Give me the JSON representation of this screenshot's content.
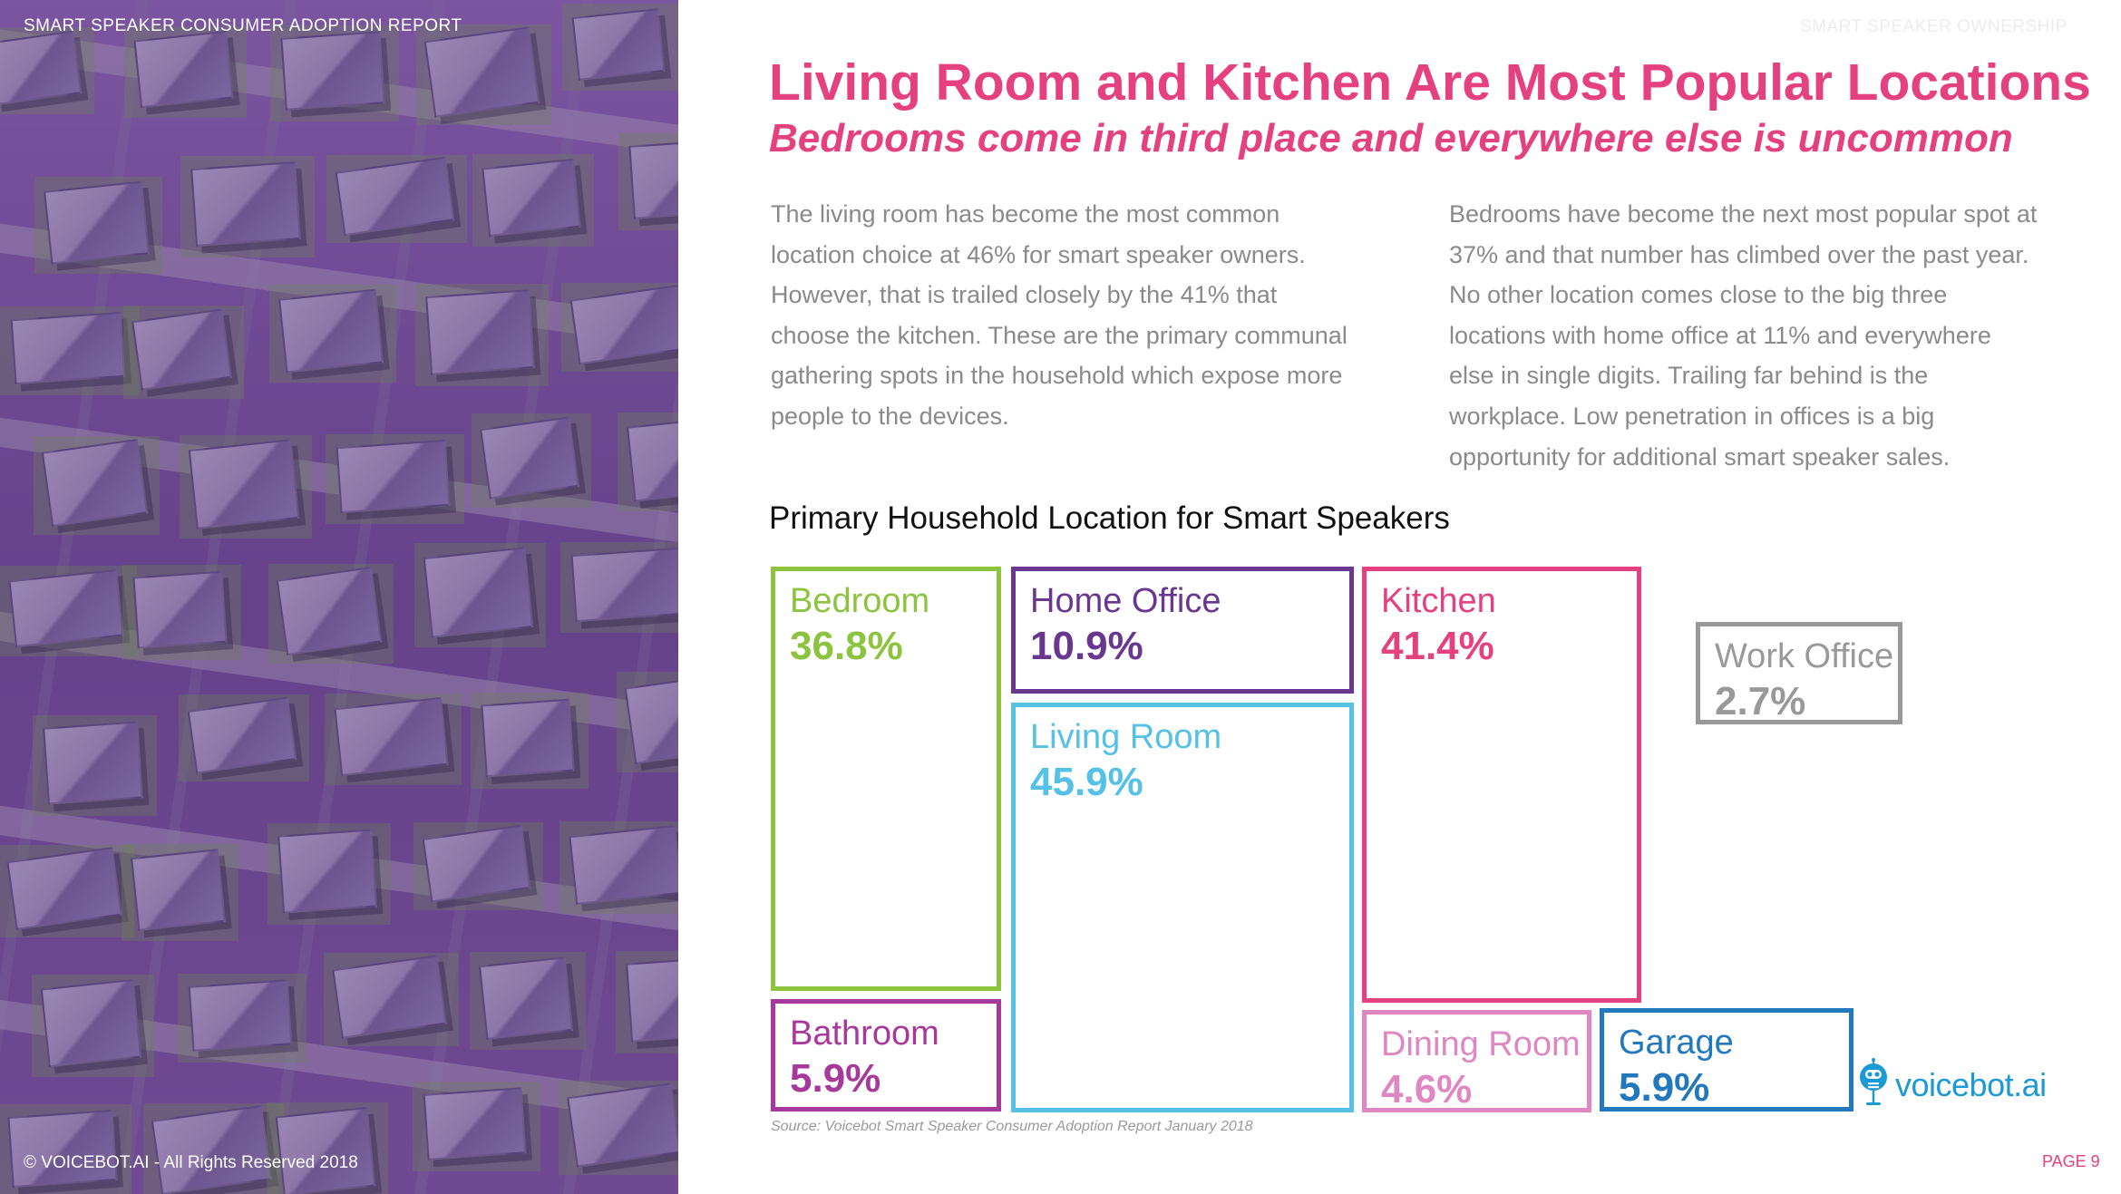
{
  "header": {
    "report_label": "SMART SPEAKER CONSUMER ADOPTION REPORT",
    "section_label": "SMART SPEAKER OWNERSHIP"
  },
  "headline": "Living Room and Kitchen Are Most Popular Locations",
  "subheadline": "Bedrooms come in third place and everywhere else is uncommon",
  "body": {
    "left": "The living room has become the most common location choice at 46% for smart speaker owners. However, that is trailed closely by the 41% that choose the kitchen. These are the primary communal gathering spots in the household which expose more people to the devices.",
    "right": "Bedrooms have become the next most popular spot at 37% and that number has climbed over the past year. No other location comes close to the big three locations with home office at 11% and everywhere else in single digits. Trailing far behind is the workplace. Low penetration in offices is a big opportunity for additional smart speaker sales."
  },
  "chart_data": {
    "type": "treemap",
    "title": "Primary Household Location for Smart Speakers",
    "unit": "%",
    "items": [
      {
        "label": "Bedroom",
        "value": 36.8,
        "display": "36.8%",
        "color": "#8cc43f"
      },
      {
        "label": "Bathroom",
        "value": 5.9,
        "display": "5.9%",
        "color": "#a8399c"
      },
      {
        "label": "Home Office",
        "value": 10.9,
        "display": "10.9%",
        "color": "#6a3790"
      },
      {
        "label": "Living Room",
        "value": 45.9,
        "display": "45.9%",
        "color": "#55c1e6"
      },
      {
        "label": "Kitchen",
        "value": 41.4,
        "display": "41.4%",
        "color": "#e5407f"
      },
      {
        "label": "Dining Room",
        "value": 4.6,
        "display": "4.6%",
        "color": "#de87c2"
      },
      {
        "label": "Garage",
        "value": 5.9,
        "display": "5.9%",
        "color": "#2278bc"
      },
      {
        "label": "Work Office",
        "value": 2.7,
        "display": "2.7%",
        "color": "#999999"
      }
    ]
  },
  "source": "Source: Voicebot Smart Speaker Consumer Adoption Report January 2018",
  "footer": {
    "copyright": "© VOICEBOT.AI - All Rights Reserved 2018",
    "page_number": "PAGE 9"
  },
  "logo": {
    "text": "voicebot.ai",
    "icon": "robot-microphone-icon",
    "color": "#1c9ad6"
  }
}
